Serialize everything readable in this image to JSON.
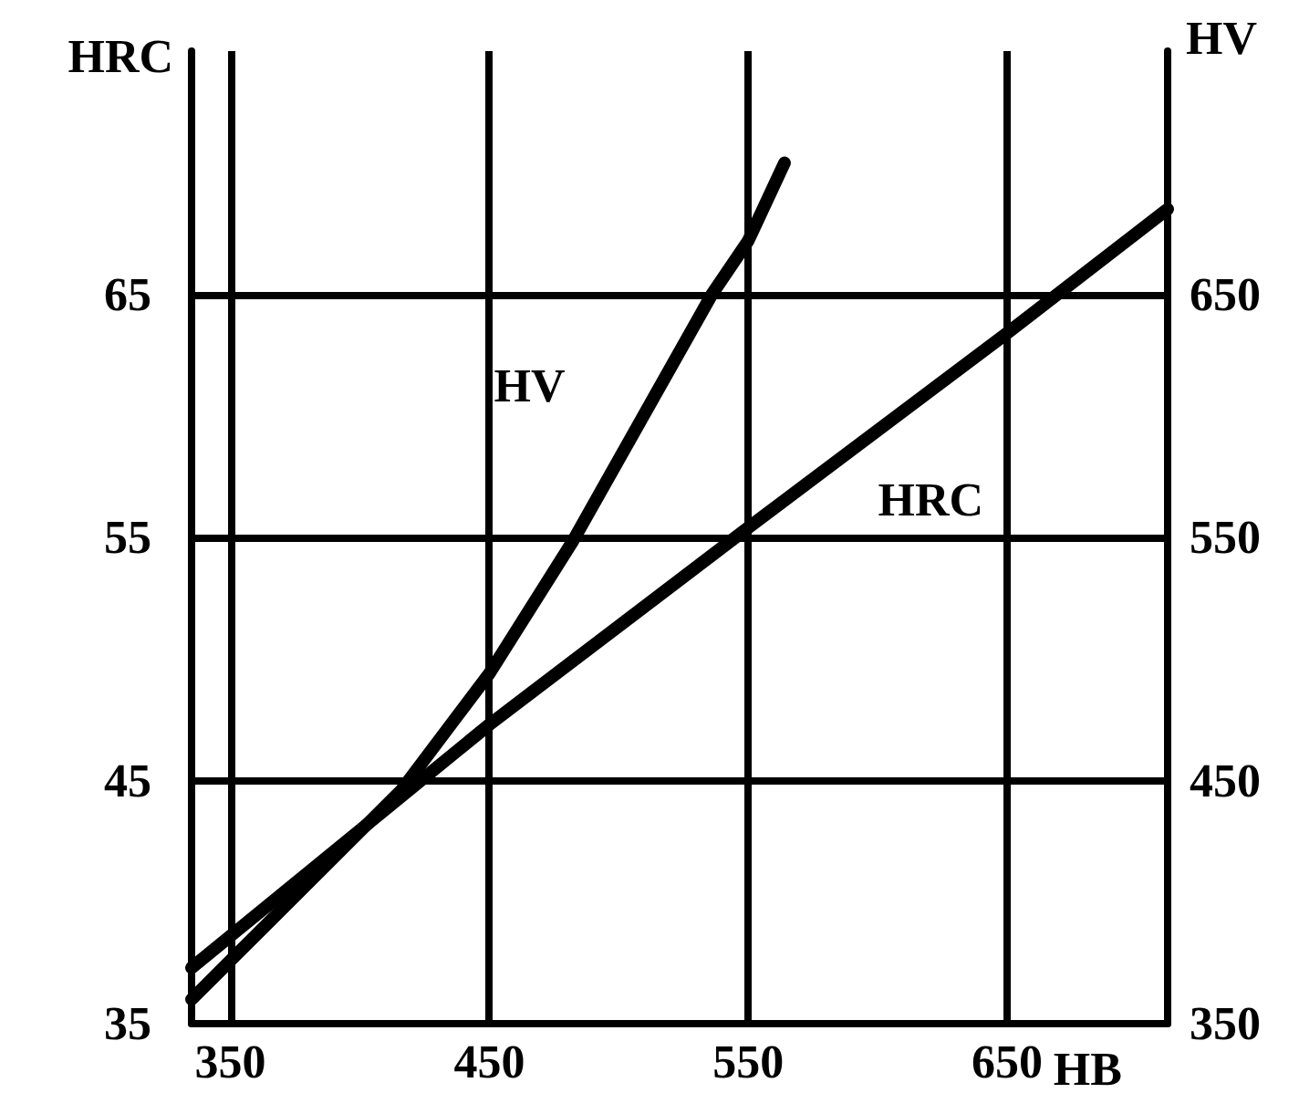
{
  "chart_data": {
    "type": "line",
    "xlabel": "HB",
    "ylabel": "HRC",
    "y2label": "HV",
    "xlim": [
      335,
      712
    ],
    "xticks": [
      350,
      450,
      550,
      650
    ],
    "ylim": [
      35,
      75
    ],
    "yticks": [
      35,
      45,
      55,
      65
    ],
    "y2lim": [
      350,
      750
    ],
    "y2ticks": [
      350,
      450,
      550,
      650
    ],
    "grid": true,
    "legend": false,
    "series": [
      {
        "name": "HV",
        "color": "#000000",
        "axis": "y2",
        "x": [
          335,
          416,
          450,
          482,
          536,
          550,
          564
        ],
        "values": [
          360,
          446,
          494,
          548,
          650,
          672,
          704
        ]
      },
      {
        "name": "HRC",
        "color": "#000000",
        "x": [
          335,
          450,
          550,
          650,
          712
        ],
        "values": [
          37.3,
          47.3,
          55.4,
          63.4,
          68.5
        ]
      }
    ]
  }
}
